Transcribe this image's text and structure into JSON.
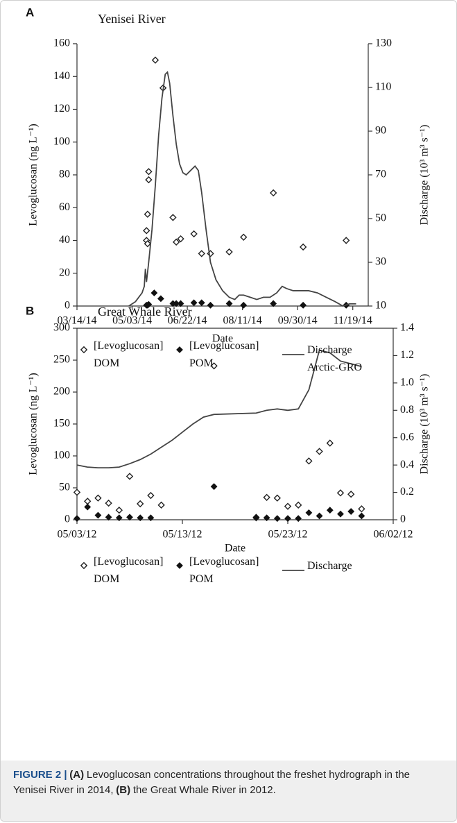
{
  "chart_data": [
    {
      "type": "combo",
      "panel": "A",
      "title": "Yenisei River",
      "xlabel": "Date",
      "ylabel": "Levoglucosan (ng L⁻¹)",
      "y2label": "Discharge (10³ m³ s⁻¹)",
      "xlim": [
        "03/14/14",
        "12/03/14"
      ],
      "xticks": [
        "03/14/14",
        "05/03/14",
        "06/22/14",
        "08/11/14",
        "09/30/14",
        "11/19/14"
      ],
      "ylim": [
        0,
        160
      ],
      "yticks": [
        0,
        20,
        40,
        60,
        80,
        100,
        120,
        140,
        160
      ],
      "y2lim": [
        10,
        130
      ],
      "y2ticks": [
        10,
        30,
        50,
        70,
        90,
        110,
        130
      ],
      "box": false,
      "series": [
        {
          "name": "[Levoglucosan]\nDOM",
          "kind": "scatter",
          "marker": "open-diamond",
          "color": "#222222",
          "x": [
            "05/16/14",
            "05/16/14",
            "05/17/14",
            "05/17/14",
            "05/18/14",
            "05/18/14",
            "05/24/14",
            "05/31/14",
            "06/09/14",
            "06/12/14",
            "06/16/14",
            "06/28/14",
            "07/05/14",
            "07/13/14",
            "07/30/14",
            "08/12/14",
            "09/08/14",
            "10/05/14",
            "11/13/14"
          ],
          "values": [
            46,
            40,
            38,
            56,
            77,
            82,
            150,
            133,
            54,
            39,
            41,
            44,
            32,
            32,
            33,
            42,
            69,
            36,
            40
          ]
        },
        {
          "name": "[Levoglucosan]\nPOM",
          "kind": "scatter",
          "marker": "filled-diamond",
          "color": "#111111",
          "x": [
            "05/16/14",
            "05/17/14",
            "05/18/14",
            "05/23/14",
            "05/29/14",
            "06/09/14",
            "06/12/14",
            "06/16/14",
            "06/28/14",
            "07/05/14",
            "07/13/14",
            "07/30/14",
            "08/12/14",
            "09/08/14",
            "10/05/14",
            "11/13/14"
          ],
          "values": [
            0.5,
            0.5,
            1,
            8,
            4.5,
            1.5,
            1.5,
            1.5,
            2,
            2,
            0.5,
            1.5,
            0.5,
            1.5,
            0.5,
            0.5
          ]
        },
        {
          "name": "Discharge\nArctic-GRO",
          "kind": "line",
          "axis": "y2",
          "color": "#444444",
          "x": [
            "04/30/14",
            "05/06/14",
            "05/12/14",
            "05/14/14",
            "05/15/14",
            "05/16/14",
            "05/18/14",
            "05/21/14",
            "05/24/14",
            "05/27/14",
            "05/30/14",
            "06/02/14",
            "06/04/14",
            "06/06/14",
            "06/09/14",
            "06/12/14",
            "06/15/14",
            "06/18/14",
            "06/21/14",
            "06/25/14",
            "06/29/14",
            "07/02/14",
            "07/05/14",
            "07/09/14",
            "07/13/14",
            "07/18/14",
            "07/24/14",
            "07/30/14",
            "08/04/14",
            "08/08/14",
            "08/12/14",
            "08/18/14",
            "08/24/14",
            "08/30/14",
            "09/05/14",
            "09/11/14",
            "09/16/14",
            "09/20/14",
            "09/26/14",
            "10/02/14",
            "10/10/14",
            "10/18/14",
            "10/26/14",
            "11/03/14",
            "11/10/14",
            "11/16/14",
            "11/22/14"
          ],
          "values": [
            10,
            12,
            16,
            19,
            27,
            21,
            30,
            45,
            65,
            88,
            105,
            116,
            117,
            112,
            97,
            84,
            75,
            71,
            70,
            72,
            74,
            72,
            62,
            45,
            30,
            22,
            17,
            14,
            13,
            15,
            15,
            14,
            13,
            14,
            14,
            16,
            19,
            18,
            17,
            17,
            17,
            16,
            14,
            12,
            10,
            11,
            11
          ]
        }
      ]
    },
    {
      "type": "combo",
      "panel": "B",
      "title": "Great Whale River",
      "xlabel": "Date",
      "ylabel": "Levoglucosan (ng L⁻¹)",
      "y2label": "Discharge (10³ m³ s⁻¹)",
      "xlim": [
        "05/03/12",
        "06/02/12"
      ],
      "xticks": [
        "05/03/12",
        "05/13/12",
        "05/23/12",
        "06/02/12"
      ],
      "ylim": [
        0,
        300
      ],
      "yticks": [
        0,
        50,
        100,
        150,
        200,
        250,
        300
      ],
      "y2lim": [
        0,
        1.4
      ],
      "y2ticks": [
        0,
        0.2,
        0.4,
        0.6,
        0.8,
        {
          "value": 1,
          "label": "1.0"
        },
        1.2,
        1.4
      ],
      "box": true,
      "series": [
        {
          "name": "[Levoglucosan]\nDOM",
          "kind": "scatter",
          "marker": "open-diamond",
          "color": "#222222",
          "x": [
            "05/03/12",
            "05/04/12",
            "05/05/12",
            "05/06/12",
            "05/07/12",
            "05/08/12",
            "05/09/12",
            "05/10/12",
            "05/11/12",
            "05/16/12",
            "05/20/12",
            "05/21/12",
            "05/22/12",
            "05/23/12",
            "05/24/12",
            "05/25/12",
            "05/26/12",
            "05/27/12",
            "05/28/12",
            "05/29/12",
            "05/30/12"
          ],
          "values": [
            43,
            29,
            34,
            26,
            15,
            68,
            25,
            38,
            23,
            241,
            3,
            35,
            34,
            21,
            23,
            92,
            107,
            120,
            42,
            40,
            17
          ]
        },
        {
          "name": "[Levoglucosan]\nPOM",
          "kind": "scatter",
          "marker": "filled-diamond",
          "color": "#111111",
          "x": [
            "05/03/12",
            "05/04/12",
            "05/05/12",
            "05/06/12",
            "05/07/12",
            "05/08/12",
            "05/09/12",
            "05/10/12",
            "05/16/12",
            "05/20/12",
            "05/21/12",
            "05/22/12",
            "05/23/12",
            "05/24/12",
            "05/25/12",
            "05/26/12",
            "05/27/12",
            "05/28/12",
            "05/29/12",
            "05/30/12"
          ],
          "values": [
            2,
            20,
            7,
            4,
            3,
            4,
            3,
            3,
            52,
            4,
            3,
            2,
            2,
            2,
            11,
            6,
            15,
            9,
            13,
            6
          ]
        },
        {
          "name": "Discharge",
          "kind": "line",
          "axis": "y2",
          "color": "#444444",
          "x": [
            "05/03/12",
            "05/04/12",
            "05/05/12",
            "05/06/12",
            "05/07/12",
            "05/08/12",
            "05/09/12",
            "05/10/12",
            "05/11/12",
            "05/12/12",
            "05/13/12",
            "05/14/12",
            "05/15/12",
            "05/16/12",
            "05/20/12",
            "05/21/12",
            "05/22/12",
            "05/23/12",
            "05/24/12",
            "05/25/12",
            "05/26/12",
            "05/27/12",
            "05/28/12",
            "05/29/12",
            "05/30/12"
          ],
          "values": [
            0.4,
            0.385,
            0.38,
            0.38,
            0.385,
            0.41,
            0.44,
            0.48,
            0.53,
            0.58,
            0.64,
            0.7,
            0.75,
            0.77,
            0.78,
            0.8,
            0.81,
            0.8,
            0.81,
            0.95,
            1.24,
            1.22,
            1.16,
            1.14,
            1.12
          ]
        }
      ]
    }
  ],
  "caption": {
    "label": "FIGURE 2 |",
    "parts": [
      {
        "text": "(A)",
        "bold": true
      },
      {
        "text": "Levoglucosan concentrations throughout the freshet hydrograph in the Yenisei River in 2014,",
        "bold": false
      },
      {
        "text": "(B)",
        "bold": true
      },
      {
        "text": "the Great Whale River in 2012.",
        "bold": false
      }
    ]
  }
}
